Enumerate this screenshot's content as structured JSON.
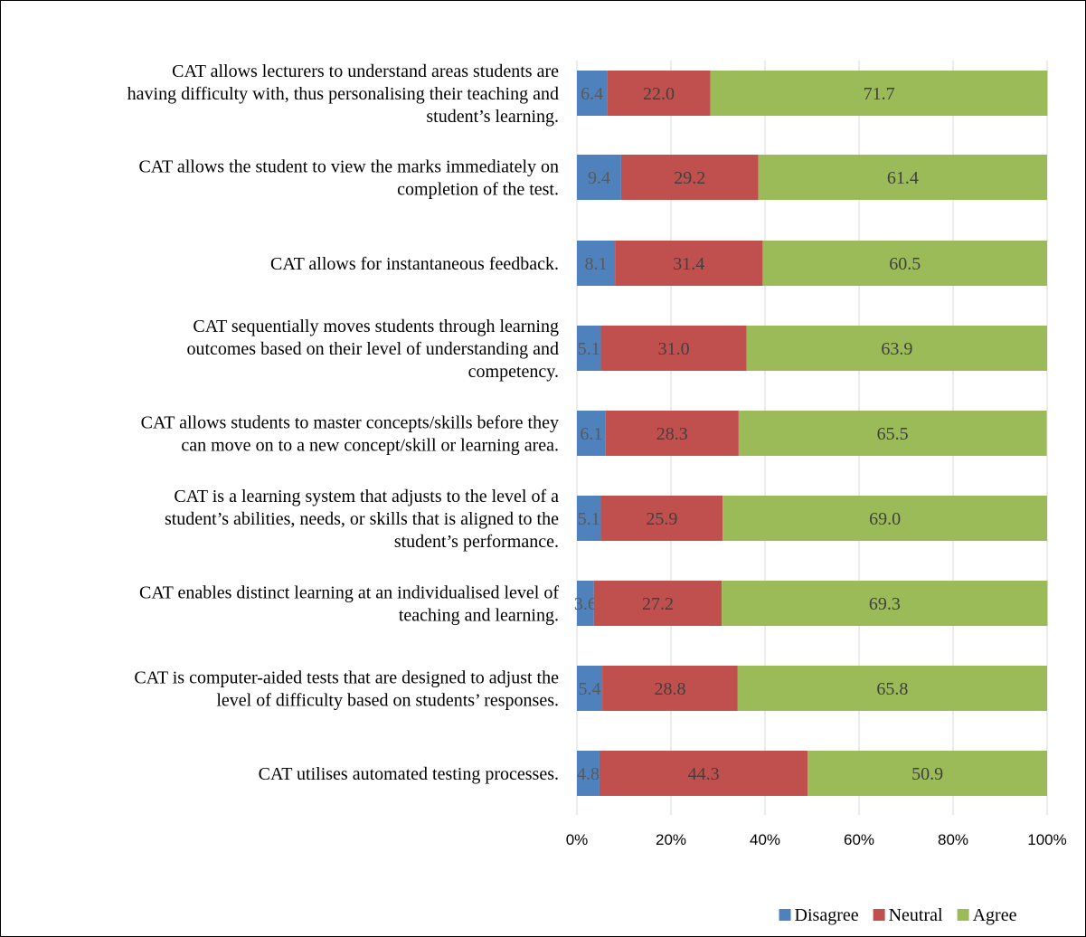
{
  "chart_data": {
    "type": "bar",
    "orientation": "horizontal",
    "stacked": "percent",
    "title": "",
    "xlabel": "",
    "ylabel": "",
    "xlim": [
      0,
      100
    ],
    "x_ticks": [
      "0%",
      "20%",
      "40%",
      "60%",
      "80%",
      "100%"
    ],
    "grid": "vertical",
    "legend_position": "bottom",
    "categories": [
      [
        "CAT allows lecturers to understand areas students are",
        "having difficulty with, thus personalising their teaching and",
        "student’s learning."
      ],
      [
        "CAT allows the student to view the marks immediately on",
        "completion of the test."
      ],
      [
        "CAT allows for instantaneous feedback."
      ],
      [
        "CAT sequentially moves students through learning",
        "outcomes based on their level of understanding and",
        "competency."
      ],
      [
        "CAT allows students to master concepts/skills before they",
        "can move on to a new concept/skill or learning area."
      ],
      [
        "CAT is a learning system that adjusts to the level of a",
        "student’s abilities, needs, or skills that is aligned to the",
        "student’s performance."
      ],
      [
        "CAT enables distinct learning at an individualised level of",
        "teaching and learning."
      ],
      [
        "CAT is computer-aided tests that are designed to adjust the",
        "level of difficulty based on students’ responses."
      ],
      [
        "CAT utilises automated testing processes."
      ]
    ],
    "series": [
      {
        "name": "Disagree",
        "color": "#4f81bd",
        "label_color": "#595959",
        "values": [
          6.4,
          9.4,
          8.1,
          5.1,
          6.1,
          5.1,
          3.6,
          5.4,
          4.8
        ],
        "labels": [
          "6.4",
          "9.4",
          "8.1",
          "5.1",
          "6.1",
          "5.1",
          "3.6",
          "5.4",
          "4.8"
        ]
      },
      {
        "name": "Neutral",
        "color": "#c0504d",
        "label_color": "#404040",
        "values": [
          22.0,
          29.2,
          31.4,
          31.0,
          28.3,
          25.9,
          27.2,
          28.8,
          44.3
        ],
        "labels": [
          "22.0",
          "29.2",
          "31.4",
          "31.0",
          "28.3",
          "25.9",
          "27.2",
          "28.8",
          "44.3"
        ]
      },
      {
        "name": "Agree",
        "color": "#9bbb59",
        "label_color": "#404040",
        "values": [
          71.7,
          61.4,
          60.5,
          63.9,
          65.5,
          69.0,
          69.3,
          65.8,
          50.9
        ],
        "labels": [
          "71.7",
          "61.4",
          "60.5",
          "63.9",
          "65.5",
          "69.0",
          "69.3",
          "65.8",
          "50.9"
        ]
      }
    ]
  }
}
